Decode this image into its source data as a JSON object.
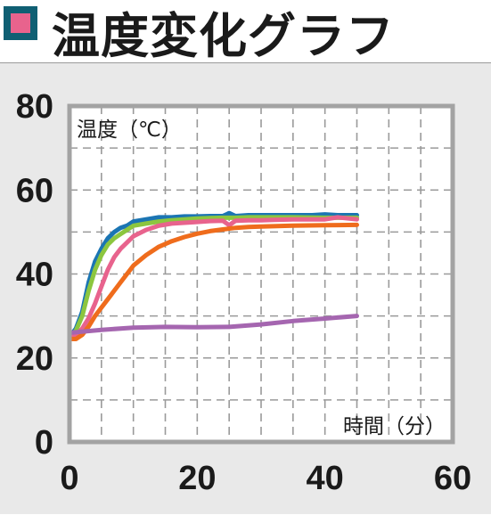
{
  "title": "温度変化グラフ",
  "colors": {
    "title_marker_outer": "#0f5f73",
    "title_marker_inner": "#e8638d",
    "panel_bg": "#e9e9e9",
    "plot_bg": "#ffffff",
    "frame": "#a3a3a3",
    "grid": "#9a9a9a"
  },
  "chart_data": {
    "type": "line",
    "title": "温度変化グラフ",
    "xlabel": "時間（分）",
    "ylabel": "温度（℃）",
    "xlim": [
      0,
      60
    ],
    "ylim": [
      0,
      80
    ],
    "x_ticks": [
      "0",
      "20",
      "40",
      "60"
    ],
    "y_ticks": [
      "0",
      "20",
      "40",
      "60",
      "80"
    ],
    "grid": true,
    "legend": "none",
    "series": [
      {
        "color": "#1b75b3",
        "x": [
          0,
          1,
          2,
          3,
          4,
          5,
          6,
          7,
          8,
          9,
          10,
          12,
          14,
          16,
          18,
          20,
          22,
          24,
          25,
          26,
          28,
          30,
          32,
          34,
          36,
          38,
          40,
          42,
          44,
          45
        ],
        "y": [
          25,
          27,
          31,
          38,
          43,
          46,
          48.5,
          50,
          51,
          51.5,
          52.5,
          53,
          53.5,
          53.5,
          53.7,
          53.7,
          53.8,
          53.8,
          54.5,
          53.8,
          54,
          54,
          54,
          54,
          54,
          54,
          54.2,
          54,
          54,
          54
        ]
      },
      {
        "color": "#8cc63f",
        "x": [
          0,
          1,
          2,
          3,
          4,
          5,
          6,
          7,
          8,
          9,
          10,
          12,
          14,
          16,
          18,
          20,
          22,
          24,
          26,
          28,
          30,
          35,
          40,
          45
        ],
        "y": [
          25,
          26.5,
          30,
          36,
          41,
          44.5,
          47,
          48.5,
          49.5,
          50.5,
          51.5,
          52,
          52.5,
          52.8,
          53,
          53.2,
          53.3,
          53.4,
          53.4,
          53.5,
          53.5,
          53.5,
          53.4,
          53.4
        ]
      },
      {
        "color": "#e8638d",
        "x": [
          0,
          1,
          2,
          3,
          4,
          5,
          6,
          7,
          8,
          9,
          10,
          12,
          14,
          16,
          18,
          20,
          22,
          24,
          25,
          26,
          28,
          30,
          32,
          35,
          40,
          42,
          45
        ],
        "y": [
          25,
          25.5,
          27,
          29.5,
          33,
          37,
          41,
          44,
          46,
          47.5,
          49,
          50.5,
          51.5,
          52,
          52.2,
          52.4,
          52.6,
          52.7,
          51.6,
          52.7,
          52.8,
          52.8,
          52.9,
          53,
          53,
          53.5,
          53
        ]
      },
      {
        "color": "#ef6c1c",
        "x": [
          0,
          1,
          2,
          3,
          4,
          5,
          6,
          7,
          8,
          9,
          10,
          12,
          14,
          16,
          18,
          20,
          22,
          24,
          26,
          28,
          30,
          35,
          40,
          45
        ],
        "y": [
          24.5,
          24.5,
          25.5,
          27.5,
          30,
          32,
          34,
          36,
          38,
          40,
          42,
          44.5,
          46.5,
          47.8,
          48.8,
          49.6,
          50.2,
          50.6,
          51,
          51.2,
          51.3,
          51.5,
          51.6,
          51.7
        ]
      },
      {
        "color": "#a566b0",
        "x": [
          0,
          5,
          10,
          15,
          20,
          25,
          30,
          35,
          40,
          45
        ],
        "y": [
          26,
          26.7,
          27.2,
          27.4,
          27.3,
          27.4,
          28,
          28.8,
          29.4,
          30
        ]
      }
    ]
  }
}
